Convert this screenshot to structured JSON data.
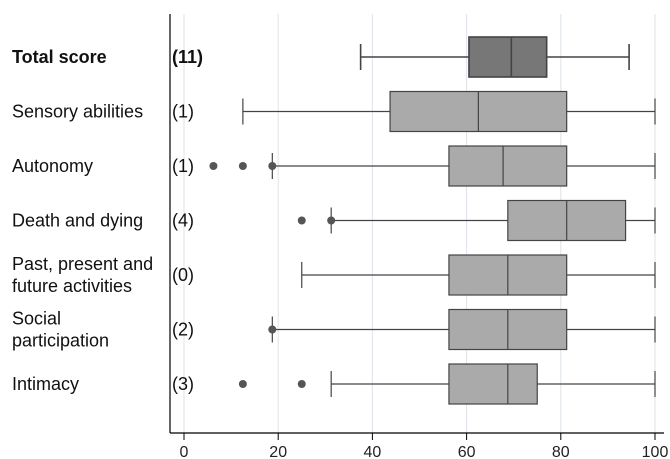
{
  "chart_data": {
    "type": "boxplot",
    "orientation": "horizontal",
    "xlim": [
      0,
      100
    ],
    "xticks": [
      0,
      20,
      40,
      60,
      80,
      100
    ],
    "tick_labels": [
      "0",
      "20",
      "40",
      "60",
      "80",
      "100"
    ],
    "grid": "vertical",
    "colors": {
      "highlight": "#777777",
      "default": "#aaaaaa",
      "stroke": "#444444",
      "outlier": "#555555",
      "grid": "#dde3ea"
    },
    "categories": [
      {
        "label_lines": [
          "Total score"
        ],
        "count": "(11)",
        "bold": true,
        "whisker_low": 37.5,
        "q1": 60.5,
        "median": 69.5,
        "q3": 77,
        "whisker_high": 94.5,
        "outliers": []
      },
      {
        "label_lines": [
          "Sensory abilities"
        ],
        "count": "(1)",
        "bold": false,
        "whisker_low": 12.5,
        "q1": 43.75,
        "median": 62.5,
        "q3": 81.25,
        "whisker_high": 100,
        "outliers": []
      },
      {
        "label_lines": [
          "Autonomy"
        ],
        "count": "(1)",
        "bold": false,
        "whisker_low": 18.75,
        "q1": 56.25,
        "median": 67.75,
        "q3": 81.25,
        "whisker_high": 100,
        "outliers": [
          6.25,
          12.5,
          18.75
        ]
      },
      {
        "label_lines": [
          "Death and dying"
        ],
        "count": "(4)",
        "bold": false,
        "whisker_low": 31.25,
        "q1": 68.75,
        "median": 81.25,
        "q3": 93.75,
        "whisker_high": 100,
        "outliers": [
          25,
          31.25
        ]
      },
      {
        "label_lines": [
          "Past, present and",
          "future activities"
        ],
        "count": "(0)",
        "bold": false,
        "whisker_low": 25,
        "q1": 56.25,
        "median": 68.75,
        "q3": 81.25,
        "whisker_high": 100,
        "outliers": []
      },
      {
        "label_lines": [
          "Social",
          "participation"
        ],
        "count": "(2)",
        "bold": false,
        "whisker_low": 18.75,
        "q1": 56.25,
        "median": 68.75,
        "q3": 81.25,
        "whisker_high": 100,
        "outliers": [
          18.75
        ]
      },
      {
        "label_lines": [
          "Intimacy"
        ],
        "count": "(3)",
        "bold": false,
        "whisker_low": 31.25,
        "q1": 56.25,
        "median": 68.75,
        "q3": 75,
        "whisker_high": 100,
        "outliers": [
          12.5,
          25
        ]
      }
    ]
  }
}
